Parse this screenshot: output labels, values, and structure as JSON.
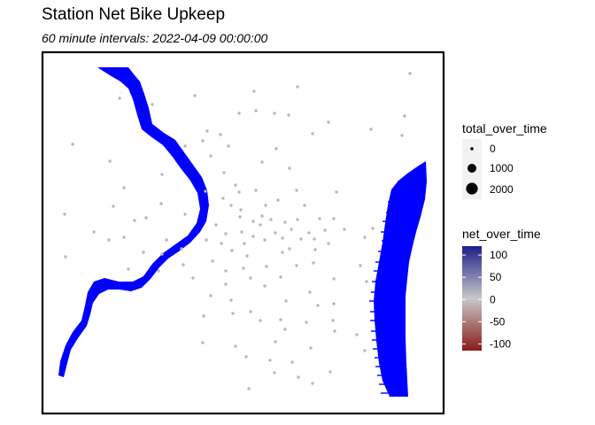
{
  "chart_data": {
    "type": "scatter",
    "title": "Station Net Bike Upkeep",
    "subtitle": "60 minute intervals: 2022-04-09 00:00:00",
    "point_color": "#b8b8b8",
    "river_color": "#0000ff",
    "frame_color": "#000000",
    "legends": {
      "size": {
        "title": "total_over_time",
        "entries": [
          {
            "label": "0",
            "value": 0
          },
          {
            "label": "1000",
            "value": 1000
          },
          {
            "label": "2000",
            "value": 2000
          }
        ]
      },
      "color": {
        "title": "net_over_time",
        "range": [
          -115,
          120
        ],
        "low_color": "#8b1a1a",
        "mid_color": "#c8c8c8",
        "high_color": "#1f1f8c",
        "ticks": [
          {
            "label": "100",
            "value": 100
          },
          {
            "label": "50",
            "value": 50
          },
          {
            "label": "0",
            "value": 0
          },
          {
            "label": "-50",
            "value": -50
          },
          {
            "label": "-100",
            "value": -100
          }
        ]
      }
    }
  }
}
